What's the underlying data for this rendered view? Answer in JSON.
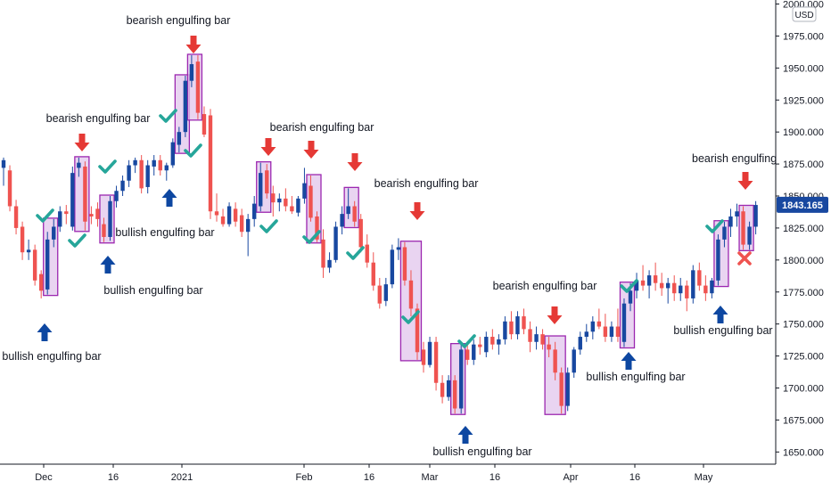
{
  "chart_data": {
    "type": "candlestick",
    "currency": "USD",
    "last_price": "1843.165",
    "ylim": [
      1640,
      2000
    ],
    "y_ticks": [
      "2000.000",
      "1975.000",
      "1950.000",
      "1925.000",
      "1900.000",
      "1875.000",
      "1850.000",
      "1825.000",
      "1800.000",
      "1775.000",
      "1750.000",
      "1725.000",
      "1700.000",
      "1675.000",
      "1650.000"
    ],
    "x_ticks": [
      "Dec",
      "16",
      "2021",
      "Feb",
      "16",
      "Mar",
      "16",
      "Apr",
      "16",
      "May"
    ],
    "colors": {
      "up": "#1848a0",
      "down": "#ef5350",
      "check": "#26a69a",
      "cross": "#ef5350",
      "box_fill": "#e1c6ec",
      "box_stroke": "#9c27b0",
      "down_arrow": "#e53935",
      "up_arrow": "#0d47a1",
      "price_tag": "#1848a0"
    },
    "candles": [
      {
        "o": 1872,
        "h": 1880,
        "l": 1858,
        "c": 1878
      },
      {
        "o": 1870,
        "h": 1874,
        "l": 1838,
        "c": 1842
      },
      {
        "o": 1842,
        "h": 1847,
        "l": 1820,
        "c": 1825
      },
      {
        "o": 1826,
        "h": 1830,
        "l": 1800,
        "c": 1806
      },
      {
        "o": 1806,
        "h": 1816,
        "l": 1800,
        "c": 1808
      },
      {
        "o": 1808,
        "h": 1812,
        "l": 1780,
        "c": 1784
      },
      {
        "o": 1789,
        "h": 1792,
        "l": 1770,
        "c": 1776
      },
      {
        "o": 1777,
        "h": 1822,
        "l": 1773,
        "c": 1816
      },
      {
        "o": 1816,
        "h": 1832,
        "l": 1810,
        "c": 1826
      },
      {
        "o": 1826,
        "h": 1842,
        "l": 1822,
        "c": 1838
      },
      {
        "o": 1838,
        "h": 1843,
        "l": 1828,
        "c": 1836
      },
      {
        "o": 1826,
        "h": 1873,
        "l": 1823,
        "c": 1868
      },
      {
        "o": 1872,
        "h": 1880,
        "l": 1865,
        "c": 1876
      },
      {
        "o": 1873,
        "h": 1877,
        "l": 1823,
        "c": 1830
      },
      {
        "o": 1836,
        "h": 1842,
        "l": 1828,
        "c": 1834
      },
      {
        "o": 1840,
        "h": 1845,
        "l": 1826,
        "c": 1832
      },
      {
        "o": 1828,
        "h": 1833,
        "l": 1814,
        "c": 1818
      },
      {
        "o": 1818,
        "h": 1850,
        "l": 1815,
        "c": 1846
      },
      {
        "o": 1846,
        "h": 1858,
        "l": 1841,
        "c": 1854
      },
      {
        "o": 1854,
        "h": 1866,
        "l": 1850,
        "c": 1862
      },
      {
        "o": 1862,
        "h": 1878,
        "l": 1857,
        "c": 1874
      },
      {
        "o": 1874,
        "h": 1880,
        "l": 1868,
        "c": 1878
      },
      {
        "o": 1878,
        "h": 1882,
        "l": 1852,
        "c": 1856
      },
      {
        "o": 1857,
        "h": 1878,
        "l": 1852,
        "c": 1874
      },
      {
        "o": 1873,
        "h": 1882,
        "l": 1866,
        "c": 1878
      },
      {
        "o": 1878,
        "h": 1882,
        "l": 1866,
        "c": 1870
      },
      {
        "o": 1870,
        "h": 1876,
        "l": 1862,
        "c": 1874
      },
      {
        "o": 1874,
        "h": 1895,
        "l": 1872,
        "c": 1892
      },
      {
        "o": 1890,
        "h": 1904,
        "l": 1884,
        "c": 1900
      },
      {
        "o": 1900,
        "h": 1944,
        "l": 1896,
        "c": 1940
      },
      {
        "o": 1940,
        "h": 1960,
        "l": 1935,
        "c": 1953
      },
      {
        "o": 1955,
        "h": 1960,
        "l": 1910,
        "c": 1915
      },
      {
        "o": 1914,
        "h": 1920,
        "l": 1896,
        "c": 1898
      },
      {
        "o": 1913,
        "h": 1918,
        "l": 1832,
        "c": 1838
      },
      {
        "o": 1838,
        "h": 1852,
        "l": 1830,
        "c": 1835
      },
      {
        "o": 1834,
        "h": 1840,
        "l": 1826,
        "c": 1828
      },
      {
        "o": 1828,
        "h": 1845,
        "l": 1826,
        "c": 1842
      },
      {
        "o": 1840,
        "h": 1845,
        "l": 1826,
        "c": 1830
      },
      {
        "o": 1835,
        "h": 1840,
        "l": 1818,
        "c": 1822
      },
      {
        "o": 1822,
        "h": 1836,
        "l": 1803,
        "c": 1832
      },
      {
        "o": 1832,
        "h": 1850,
        "l": 1826,
        "c": 1844
      },
      {
        "o": 1842,
        "h": 1876,
        "l": 1838,
        "c": 1868
      },
      {
        "o": 1870,
        "h": 1875,
        "l": 1848,
        "c": 1852
      },
      {
        "o": 1852,
        "h": 1858,
        "l": 1834,
        "c": 1845
      },
      {
        "o": 1845,
        "h": 1852,
        "l": 1838,
        "c": 1848
      },
      {
        "o": 1848,
        "h": 1856,
        "l": 1838,
        "c": 1842
      },
      {
        "o": 1842,
        "h": 1850,
        "l": 1836,
        "c": 1838
      },
      {
        "o": 1837,
        "h": 1850,
        "l": 1834,
        "c": 1848
      },
      {
        "o": 1848,
        "h": 1872,
        "l": 1844,
        "c": 1860
      },
      {
        "o": 1858,
        "h": 1866,
        "l": 1830,
        "c": 1833
      },
      {
        "o": 1834,
        "h": 1838,
        "l": 1814,
        "c": 1816
      },
      {
        "o": 1816,
        "h": 1824,
        "l": 1786,
        "c": 1794
      },
      {
        "o": 1794,
        "h": 1806,
        "l": 1790,
        "c": 1800
      },
      {
        "o": 1800,
        "h": 1830,
        "l": 1798,
        "c": 1826
      },
      {
        "o": 1826,
        "h": 1842,
        "l": 1820,
        "c": 1836
      },
      {
        "o": 1836,
        "h": 1856,
        "l": 1832,
        "c": 1842
      },
      {
        "o": 1842,
        "h": 1846,
        "l": 1826,
        "c": 1830
      },
      {
        "o": 1832,
        "h": 1836,
        "l": 1806,
        "c": 1810
      },
      {
        "o": 1812,
        "h": 1820,
        "l": 1794,
        "c": 1798
      },
      {
        "o": 1798,
        "h": 1806,
        "l": 1776,
        "c": 1780
      },
      {
        "o": 1780,
        "h": 1786,
        "l": 1762,
        "c": 1766
      },
      {
        "o": 1768,
        "h": 1786,
        "l": 1764,
        "c": 1781
      },
      {
        "o": 1781,
        "h": 1812,
        "l": 1778,
        "c": 1808
      },
      {
        "o": 1808,
        "h": 1817,
        "l": 1800,
        "c": 1810
      },
      {
        "o": 1810,
        "h": 1814,
        "l": 1780,
        "c": 1784
      },
      {
        "o": 1784,
        "h": 1792,
        "l": 1756,
        "c": 1762
      },
      {
        "o": 1762,
        "h": 1766,
        "l": 1722,
        "c": 1728
      },
      {
        "o": 1730,
        "h": 1736,
        "l": 1712,
        "c": 1718
      },
      {
        "o": 1718,
        "h": 1740,
        "l": 1716,
        "c": 1736
      },
      {
        "o": 1736,
        "h": 1740,
        "l": 1698,
        "c": 1704
      },
      {
        "o": 1704,
        "h": 1710,
        "l": 1688,
        "c": 1693
      },
      {
        "o": 1693,
        "h": 1710,
        "l": 1690,
        "c": 1706
      },
      {
        "o": 1706,
        "h": 1710,
        "l": 1680,
        "c": 1684
      },
      {
        "o": 1684,
        "h": 1734,
        "l": 1680,
        "c": 1730
      },
      {
        "o": 1730,
        "h": 1736,
        "l": 1718,
        "c": 1722
      },
      {
        "o": 1722,
        "h": 1738,
        "l": 1718,
        "c": 1734
      },
      {
        "o": 1734,
        "h": 1740,
        "l": 1726,
        "c": 1732
      },
      {
        "o": 1728,
        "h": 1744,
        "l": 1724,
        "c": 1740
      },
      {
        "o": 1740,
        "h": 1746,
        "l": 1730,
        "c": 1734
      },
      {
        "o": 1734,
        "h": 1742,
        "l": 1726,
        "c": 1738
      },
      {
        "o": 1738,
        "h": 1756,
        "l": 1734,
        "c": 1752
      },
      {
        "o": 1752,
        "h": 1760,
        "l": 1738,
        "c": 1742
      },
      {
        "o": 1742,
        "h": 1760,
        "l": 1738,
        "c": 1756
      },
      {
        "o": 1756,
        "h": 1762,
        "l": 1742,
        "c": 1746
      },
      {
        "o": 1746,
        "h": 1752,
        "l": 1728,
        "c": 1736
      },
      {
        "o": 1736,
        "h": 1748,
        "l": 1730,
        "c": 1742
      },
      {
        "o": 1742,
        "h": 1746,
        "l": 1730,
        "c": 1734
      },
      {
        "o": 1734,
        "h": 1740,
        "l": 1724,
        "c": 1730
      },
      {
        "o": 1730,
        "h": 1736,
        "l": 1706,
        "c": 1712
      },
      {
        "o": 1712,
        "h": 1716,
        "l": 1680,
        "c": 1686
      },
      {
        "o": 1686,
        "h": 1716,
        "l": 1682,
        "c": 1712
      },
      {
        "o": 1712,
        "h": 1732,
        "l": 1708,
        "c": 1730
      },
      {
        "o": 1730,
        "h": 1744,
        "l": 1726,
        "c": 1740
      },
      {
        "o": 1740,
        "h": 1750,
        "l": 1736,
        "c": 1744
      },
      {
        "o": 1744,
        "h": 1756,
        "l": 1738,
        "c": 1752
      },
      {
        "o": 1752,
        "h": 1762,
        "l": 1746,
        "c": 1748
      },
      {
        "o": 1748,
        "h": 1758,
        "l": 1736,
        "c": 1740
      },
      {
        "o": 1740,
        "h": 1752,
        "l": 1736,
        "c": 1748
      },
      {
        "o": 1748,
        "h": 1762,
        "l": 1736,
        "c": 1740
      },
      {
        "o": 1736,
        "h": 1770,
        "l": 1732,
        "c": 1766
      },
      {
        "o": 1766,
        "h": 1782,
        "l": 1760,
        "c": 1776
      },
      {
        "o": 1776,
        "h": 1790,
        "l": 1770,
        "c": 1784
      },
      {
        "o": 1784,
        "h": 1796,
        "l": 1776,
        "c": 1780
      },
      {
        "o": 1780,
        "h": 1792,
        "l": 1770,
        "c": 1788
      },
      {
        "o": 1788,
        "h": 1798,
        "l": 1776,
        "c": 1782
      },
      {
        "o": 1782,
        "h": 1790,
        "l": 1772,
        "c": 1778
      },
      {
        "o": 1778,
        "h": 1786,
        "l": 1766,
        "c": 1782
      },
      {
        "o": 1782,
        "h": 1788,
        "l": 1768,
        "c": 1774
      },
      {
        "o": 1774,
        "h": 1786,
        "l": 1768,
        "c": 1780
      },
      {
        "o": 1780,
        "h": 1784,
        "l": 1760,
        "c": 1770
      },
      {
        "o": 1770,
        "h": 1796,
        "l": 1766,
        "c": 1792
      },
      {
        "o": 1792,
        "h": 1798,
        "l": 1776,
        "c": 1780
      },
      {
        "o": 1780,
        "h": 1788,
        "l": 1768,
        "c": 1774
      },
      {
        "o": 1774,
        "h": 1786,
        "l": 1770,
        "c": 1784
      },
      {
        "o": 1784,
        "h": 1820,
        "l": 1780,
        "c": 1816
      },
      {
        "o": 1816,
        "h": 1830,
        "l": 1810,
        "c": 1826
      },
      {
        "o": 1826,
        "h": 1840,
        "l": 1818,
        "c": 1834
      },
      {
        "o": 1834,
        "h": 1844,
        "l": 1826,
        "c": 1838
      },
      {
        "o": 1838,
        "h": 1842,
        "l": 1808,
        "c": 1812
      },
      {
        "o": 1812,
        "h": 1830,
        "l": 1808,
        "c": 1826
      },
      {
        "o": 1826,
        "h": 1846,
        "l": 1820,
        "c": 1843
      }
    ],
    "boxes": [
      {
        "from": 7,
        "to": 8
      },
      {
        "from": 12,
        "to": 13
      },
      {
        "from": 16,
        "to": 17
      },
      {
        "from": 28,
        "to": 29
      },
      {
        "from": 30,
        "to": 31
      },
      {
        "from": 41,
        "to": 42
      },
      {
        "from": 49,
        "to": 50
      },
      {
        "from": 55,
        "to": 56
      },
      {
        "from": 64,
        "to": 66
      },
      {
        "from": 72,
        "to": 73
      },
      {
        "from": 87,
        "to": 89
      },
      {
        "from": 99,
        "to": 100
      },
      {
        "from": 114,
        "to": 115
      },
      {
        "from": 118,
        "to": 119
      }
    ],
    "annotations": [
      {
        "text": "bearish engulfing bar"
      },
      {
        "text": "bearish engulfing bar"
      },
      {
        "text": "bearish engulfing bar"
      },
      {
        "text": "bearish engulfing bar"
      },
      {
        "text": "bearish engulfing bar"
      },
      {
        "text": "bearish engulfing"
      },
      {
        "text": "bullish engulfing bar"
      },
      {
        "text": "bullish engulfing bar"
      },
      {
        "text": "bullish engulfing bar"
      },
      {
        "text": "bullish engulfing bar"
      },
      {
        "text": "bullish engulfing bar"
      },
      {
        "text": "bullish engulfing bar"
      }
    ]
  }
}
